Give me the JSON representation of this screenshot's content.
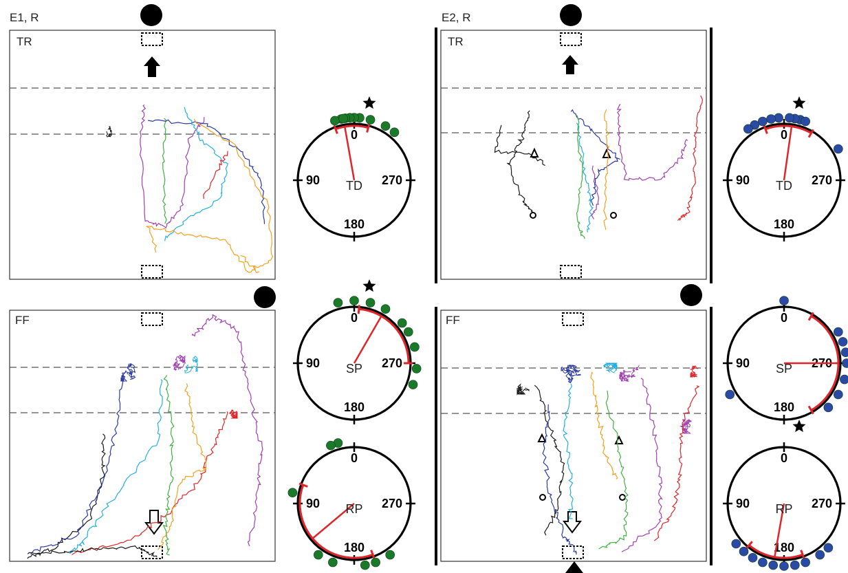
{
  "experiment_labels": {
    "e1": "E1, R",
    "e2": "E2, R"
  },
  "panels": {
    "e1_top": {
      "condition": "TR"
    },
    "e1_bottom": {
      "condition": "FF"
    },
    "e2_top": {
      "condition": "TR"
    },
    "e2_bottom": {
      "condition": "FF"
    }
  },
  "dials": [
    {
      "id": "e1-td",
      "label": "TD",
      "ticks": [
        "0",
        "90",
        "180",
        "270"
      ],
      "dot_color": "#1a7a2a",
      "star": true,
      "mean_angle": 10,
      "arc": [
        -15,
        20
      ],
      "dots": [
        345,
        355,
        0,
        4,
        8,
        12,
        18,
        330,
        320,
        10
      ]
    },
    {
      "id": "e1-sp",
      "label": "SP",
      "ticks": [
        "0",
        "90",
        "180",
        "270"
      ],
      "dot_color": "#1a7a2a",
      "star": true,
      "mean_angle": 330,
      "arc": [
        270,
        355
      ],
      "dots": [
        0,
        15,
        345,
        330,
        310,
        300,
        285,
        265,
        250
      ]
    },
    {
      "id": "e1-rp",
      "label": "RP",
      "ticks": [
        "0",
        "90",
        "180",
        "270"
      ],
      "dot_color": "#1a7a2a",
      "star": false,
      "mean_angle": 130,
      "arc": [
        70,
        200
      ],
      "dots": [
        15,
        22,
        80,
        145,
        160,
        190,
        200,
        215
      ]
    },
    {
      "id": "e2-td",
      "label": "TD",
      "ticks": [
        "0",
        "90",
        "180",
        "270"
      ],
      "dot_color": "#2a4aa6",
      "star": true,
      "mean_angle": 352,
      "arc": [
        330,
        20
      ],
      "dots": [
        345,
        350,
        355,
        5,
        12,
        20,
        28,
        35,
        300,
        340
      ]
    },
    {
      "id": "e2-sp",
      "label": "SP",
      "ticks": [
        "0",
        "90",
        "180",
        "270"
      ],
      "dot_color": "#2a4aa6",
      "star": false,
      "mean_angle": 270,
      "arc": [
        210,
        330
      ],
      "dots": [
        0,
        300,
        290,
        280,
        270,
        255,
        240,
        225,
        120
      ]
    },
    {
      "id": "e2-rp",
      "label": "RP",
      "ticks": [
        "0",
        "90",
        "180",
        "270"
      ],
      "dot_color": "#2a4aa6",
      "star": true,
      "mean_angle": 170,
      "arc": [
        140,
        200
      ],
      "dots": [
        130,
        140,
        150,
        160,
        170,
        180,
        190,
        200,
        215,
        225
      ]
    }
  ],
  "track_colors": [
    "#1a1a1a",
    "#2b3aa0",
    "#22b0e0",
    "#e0252a",
    "#f5a020",
    "#a040b0",
    "#40b040"
  ]
}
